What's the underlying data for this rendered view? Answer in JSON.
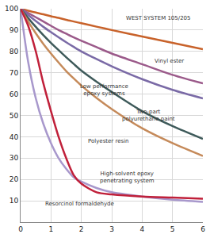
{
  "chart_data": {
    "type": "line",
    "x": [
      0,
      0.25,
      0.5,
      0.75,
      1,
      1.25,
      1.5,
      1.75,
      2,
      2.5,
      3,
      4,
      5,
      6
    ],
    "series": [
      {
        "name": "WEST SYSTEM 105/205",
        "color": "#c8622a",
        "values": [
          100,
          99.1,
          98.2,
          97.4,
          96.5,
          95.7,
          94.8,
          94,
          93.2,
          91.6,
          90,
          87,
          84,
          81
        ]
      },
      {
        "name": "Vinyl ester",
        "color": "#9b5a8a",
        "values": [
          100,
          98,
          96,
          94,
          92,
          90,
          88.3,
          86.6,
          85,
          82,
          79,
          74,
          69,
          65
        ]
      },
      {
        "name": "Low performance epoxy systems",
        "color": "#7a6aa6",
        "values": [
          100,
          97,
          94.2,
          91.5,
          89,
          86.6,
          84.3,
          82.1,
          80,
          76.4,
          73,
          67,
          62,
          58
        ]
      },
      {
        "name": "Two-part polyurethane paint",
        "color": "#3e5a5a",
        "values": [
          100,
          95.6,
          91.5,
          87.6,
          84,
          80.6,
          77.3,
          74.1,
          71,
          65.8,
          61,
          52,
          45,
          39
        ]
      },
      {
        "name": "Polyester resin",
        "color": "#c58a5a",
        "values": [
          100,
          94,
          88.5,
          83.5,
          79,
          74.8,
          70.8,
          67.3,
          64,
          58.2,
          53,
          44,
          37,
          31
        ]
      },
      {
        "name": "High-solvent epoxy penetrating system",
        "color": "#a898cc",
        "values": [
          100,
          75,
          58,
          46,
          37,
          30,
          25,
          21,
          19,
          16,
          14,
          12,
          10.5,
          9.5
        ]
      },
      {
        "name": "Resorcinol formaldehyde",
        "color": "#c0203a",
        "values": [
          100,
          92,
          80,
          65,
          52,
          40,
          30,
          22,
          18,
          14,
          13,
          12,
          11.5,
          11
        ]
      }
    ],
    "xlim": [
      0,
      6
    ],
    "xticks": [
      0,
      1,
      2,
      3,
      4,
      5,
      6
    ],
    "ylim": [
      0,
      100
    ],
    "yticks": [
      10,
      20,
      30,
      40,
      50,
      60,
      70,
      80,
      90,
      100
    ],
    "grid": true
  }
}
